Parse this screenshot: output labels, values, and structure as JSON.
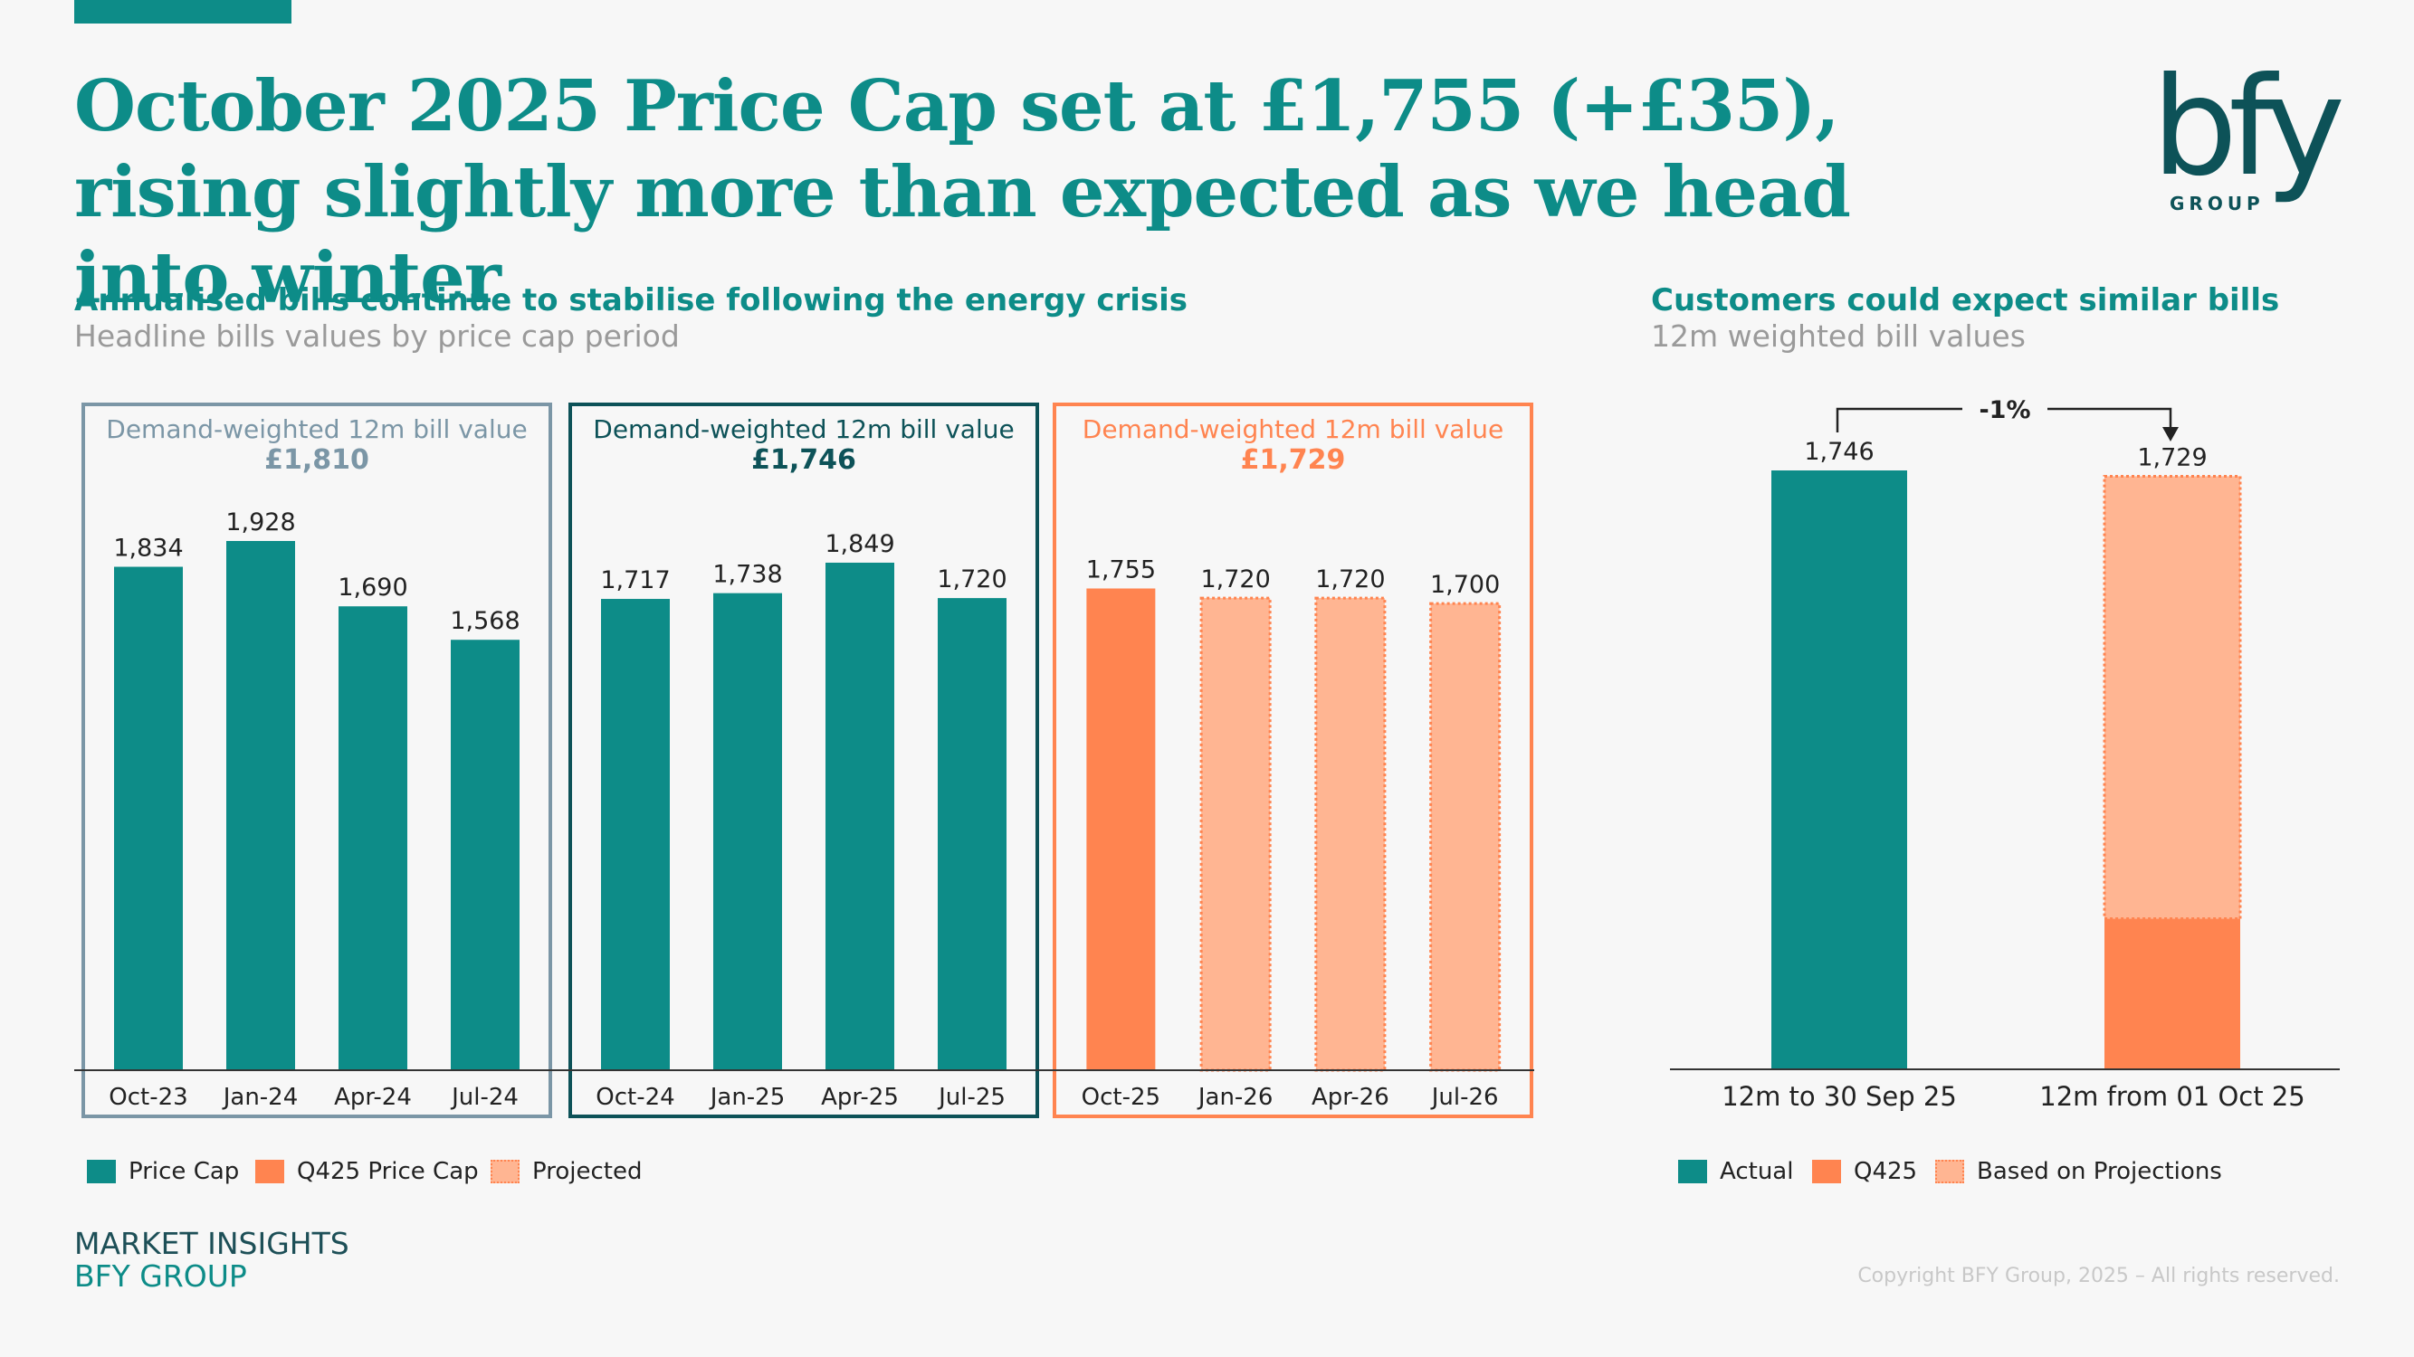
{
  "title": "October 2025 Price Cap set at £1,755 (+£35), rising slightly more than expected as we head into winter",
  "brand": {
    "logo_text": "bfy",
    "logo_sub": "GROUP"
  },
  "colors": {
    "teal": "#0d8c88",
    "dark_teal": "#0d5258",
    "slate": "#7b96a6",
    "orange": "#ff8450",
    "light_orange": "#ffb592"
  },
  "left_section": {
    "title": "Annualised bills continue to stabilise following the energy crisis",
    "subtitle": "Headline bills values by price cap period"
  },
  "right_section": {
    "title": "Customers could expect similar bills",
    "subtitle": "12m weighted bill values"
  },
  "chart_data": [
    {
      "type": "bar",
      "categories": [
        "Oct-23",
        "Jan-24",
        "Apr-24",
        "Jul-24",
        "Oct-24",
        "Jan-25",
        "Apr-25",
        "Jul-25",
        "Oct-25",
        "Jan-26",
        "Apr-26",
        "Jul-26"
      ],
      "values": [
        1834,
        1928,
        1690,
        1568,
        1717,
        1738,
        1849,
        1720,
        1755,
        1720,
        1720,
        1700
      ],
      "value_labels": [
        "1,834",
        "1,928",
        "1,690",
        "1,568",
        "1,717",
        "1,738",
        "1,849",
        "1,720",
        "1,755",
        "1,720",
        "1,720",
        "1,700"
      ],
      "bar_types": [
        "price_cap",
        "price_cap",
        "price_cap",
        "price_cap",
        "price_cap",
        "price_cap",
        "price_cap",
        "price_cap",
        "q425",
        "projected",
        "projected",
        "projected"
      ],
      "ylim": [
        0,
        1928
      ],
      "groups": [
        {
          "label": "Demand-weighted 12m bill value",
          "value": "£1,810",
          "color": "slate"
        },
        {
          "label": "Demand-weighted 12m bill value",
          "value": "£1,746",
          "color": "dark_teal"
        },
        {
          "label": "Demand-weighted 12m bill value",
          "value": "£1,729",
          "color": "orange"
        }
      ],
      "legend": [
        {
          "label": "Price Cap",
          "type": "price_cap"
        },
        {
          "label": "Q425 Price Cap",
          "type": "q425"
        },
        {
          "label": "Projected",
          "type": "projected"
        }
      ]
    },
    {
      "type": "bar",
      "stacked": true,
      "categories": [
        "12m to 30 Sep 25",
        "12m from 01 Oct 25"
      ],
      "totals": [
        1746,
        1729
      ],
      "value_labels": [
        "1,746",
        "1,729"
      ],
      "series": [
        {
          "name": "Actual",
          "values": [
            1746,
            0
          ]
        },
        {
          "name": "Q425",
          "values": [
            0,
            439
          ]
        },
        {
          "name": "Based on Projections",
          "values": [
            0,
            1290
          ]
        }
      ],
      "change_label": "-1%",
      "legend": [
        {
          "label": "Actual",
          "type": "price_cap"
        },
        {
          "label": "Q425",
          "type": "q425"
        },
        {
          "label": "Based on Projections",
          "type": "projected"
        }
      ]
    }
  ],
  "footer": {
    "line1": "MARKET INSIGHTS",
    "line2": "BFY GROUP",
    "copyright": "Copyright BFY Group, 2025 – All rights reserved."
  }
}
